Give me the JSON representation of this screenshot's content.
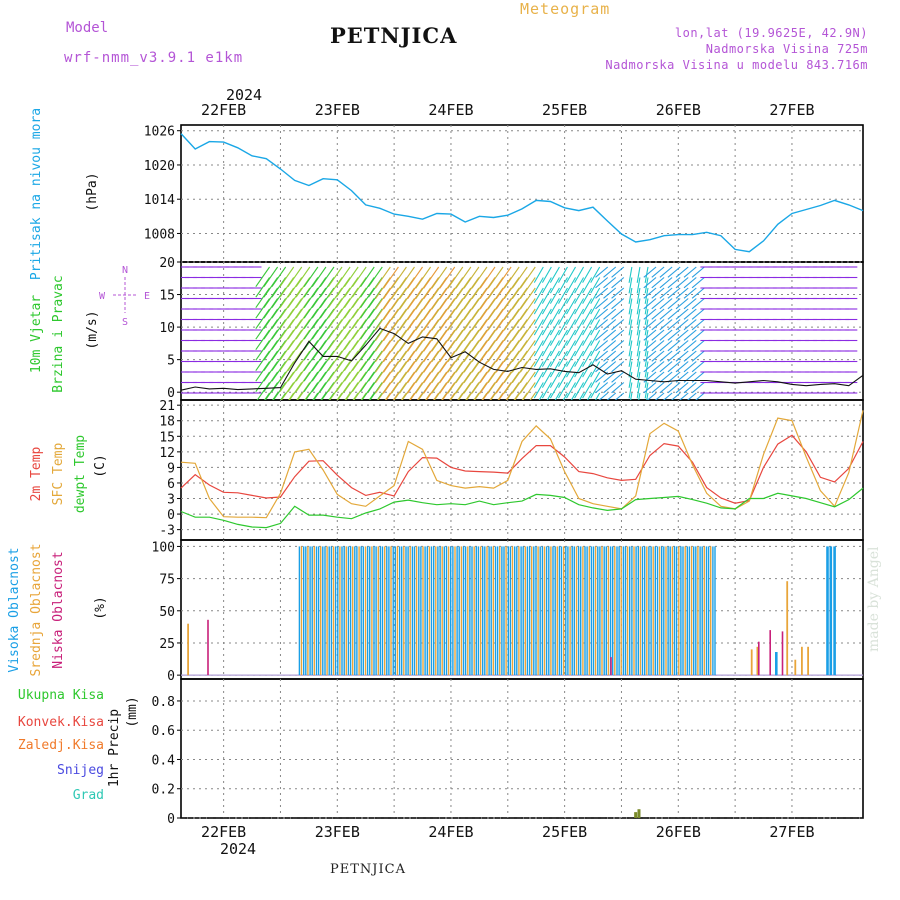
{
  "header": {
    "model_label": "Model",
    "model_name": "wrf-nmm_v3.9.1 e1km",
    "station": "PETNJICA",
    "meteogram": "Meteogram",
    "lonlat": "lon,lat (19.9625E, 42.9N)",
    "altitude": "Nadmorska Visina 725m",
    "model_altitude": "Nadmorska Visina u modelu 843.716m"
  },
  "footer": {
    "station": "PETNJICA",
    "watermark": "made by Angel"
  },
  "colors": {
    "pressure": "#1aa7e6",
    "temp": "#e8473f",
    "sfc": "#e3a83a",
    "dew": "#2ec82e",
    "high_cloud": "#1a9fe6",
    "mid_cloud": "#e8a53a",
    "low_cloud": "#c8207a",
    "purple_label": "#b455d6",
    "grid": "#888888"
  },
  "chart_data": [
    {
      "type": "line",
      "panel": "pressure",
      "ylabel": "Pritisak na nivou mora",
      "unit": "(hPa)",
      "yticks": [
        "1026",
        "1020",
        "1014",
        "1008"
      ],
      "ylim": [
        1003,
        1027
      ],
      "xlim": [
        0,
        144
      ],
      "x_top_year": "2024",
      "x_ticks": [
        "22FEB",
        "23FEB",
        "24FEB",
        "25FEB",
        "26FEB",
        "27FEB"
      ],
      "series": [
        {
          "x": [
            0,
            3,
            6,
            9,
            12,
            15,
            18,
            21,
            24,
            27,
            30,
            33,
            36,
            39,
            42,
            45,
            48,
            51,
            54,
            57,
            60,
            63,
            66,
            69,
            72,
            75,
            78,
            81,
            84,
            87,
            90,
            93,
            96,
            99,
            102,
            105,
            108,
            111,
            114,
            117,
            120,
            123,
            126,
            129,
            132,
            135,
            138,
            141,
            144
          ],
          "y": [
            1025.5,
            1022.8,
            1024.1,
            1024.0,
            1023.0,
            1021.6,
            1021.1,
            1019.3,
            1017.3,
            1016.4,
            1017.6,
            1017.4,
            1015.5,
            1013.0,
            1012.4,
            1011.4,
            1011.0,
            1010.5,
            1011.5,
            1011.4,
            1010.0,
            1011.0,
            1010.8,
            1011.2,
            1012.3,
            1013.8,
            1013.6,
            1012.5,
            1012.0,
            1012.6,
            1010.2,
            1007.9,
            1006.5,
            1006.9,
            1007.6,
            1007.8,
            1007.8,
            1008.2,
            1007.6,
            1005.2,
            1004.8,
            1006.7,
            1009.6,
            1011.5,
            1012.2,
            1012.9,
            1013.8,
            1013.0,
            1012.0
          ]
        }
      ]
    },
    {
      "type": "line",
      "panel": "wind",
      "ylabel": [
        "10m Vjetar",
        "Brzina i Pravac"
      ],
      "unit": "(m/s)",
      "compass": [
        "N",
        "W",
        "E",
        "S"
      ],
      "yticks": [
        "20",
        "15",
        "10",
        "5",
        "0"
      ],
      "ylim": [
        -1.2,
        20
      ],
      "series": [
        {
          "x": [
            0,
            3,
            6,
            9,
            12,
            15,
            18,
            21,
            24,
            27,
            30,
            33,
            36,
            39,
            42,
            45,
            48,
            51,
            54,
            57,
            60,
            63,
            66,
            69,
            72,
            75,
            78,
            81,
            84,
            87,
            90,
            93,
            96,
            99,
            102,
            105,
            108,
            111,
            114,
            117,
            120,
            123,
            126,
            129,
            132,
            135,
            138,
            141,
            144
          ],
          "y": [
            0.3,
            0.8,
            0.5,
            0.6,
            0.4,
            0.5,
            0.6,
            0.7,
            4.5,
            7.8,
            5.5,
            5.5,
            4.8,
            7.2,
            9.8,
            9.0,
            7.5,
            8.5,
            8.2,
            5.3,
            6.2,
            4.6,
            3.5,
            3.2,
            3.8,
            3.5,
            3.6,
            3.2,
            3.0,
            4.2,
            2.8,
            3.3,
            2.0,
            1.8,
            1.6,
            1.8,
            1.8,
            1.8,
            1.6,
            1.4,
            1.6,
            1.8,
            1.6,
            1.2,
            1.0,
            1.2,
            1.3,
            1.0,
            2.6
          ]
        }
      ]
    },
    {
      "type": "line",
      "panel": "temperature",
      "ylabel": [
        "2m Temp",
        "SFC Temp",
        "dewpt Temp"
      ],
      "unit": "(C)",
      "yticks": [
        "21",
        "18",
        "15",
        "12",
        "9",
        "6",
        "3",
        "0",
        "-3"
      ],
      "ylim": [
        -5,
        22
      ],
      "series": [
        {
          "name": "2m Temp",
          "x": [
            0,
            3,
            6,
            9,
            12,
            15,
            18,
            21,
            24,
            27,
            30,
            33,
            36,
            39,
            42,
            45,
            48,
            51,
            54,
            57,
            60,
            63,
            66,
            69,
            72,
            75,
            78,
            81,
            84,
            87,
            90,
            93,
            96,
            99,
            102,
            105,
            108,
            111,
            114,
            117,
            120,
            123,
            126,
            129,
            132,
            135,
            138,
            141,
            144
          ],
          "y": [
            5,
            7.6,
            5.6,
            4.2,
            4.1,
            3.6,
            3.1,
            3.3,
            7.2,
            10.2,
            10.3,
            7.5,
            5.1,
            3.6,
            4.2,
            3.5,
            8.2,
            10.9,
            10.8,
            9.0,
            8.3,
            8.2,
            8.1,
            7.9,
            10.7,
            13.2,
            13.2,
            11.0,
            8.2,
            7.8,
            7.0,
            6.5,
            6.7,
            11.3,
            13.6,
            13.1,
            10.0,
            5.1,
            3.1,
            2.1,
            2.6,
            9.0,
            13.5,
            15.2,
            12.0,
            7.1,
            6.2,
            8.8,
            14.0
          ]
        },
        {
          "name": "SFC Temp",
          "x": [
            0,
            3,
            6,
            9,
            12,
            15,
            18,
            21,
            24,
            27,
            30,
            33,
            36,
            39,
            42,
            45,
            48,
            51,
            54,
            57,
            60,
            63,
            66,
            69,
            72,
            75,
            78,
            81,
            84,
            87,
            90,
            93,
            96,
            99,
            102,
            105,
            108,
            111,
            114,
            117,
            120,
            123,
            126,
            129,
            132,
            135,
            138,
            141,
            144
          ],
          "y": [
            10,
            9.8,
            3.0,
            -0.5,
            -0.6,
            -0.6,
            -0.7,
            4.0,
            12.0,
            12.5,
            8.5,
            3.8,
            2.0,
            1.5,
            3.5,
            5.5,
            14.0,
            12.5,
            6.5,
            5.5,
            5.0,
            5.3,
            5.0,
            6.5,
            14.0,
            17.0,
            14.5,
            8.2,
            3.0,
            2.0,
            1.5,
            1.0,
            3.5,
            15.5,
            17.5,
            16.0,
            9.5,
            4.0,
            1.5,
            1.0,
            2.5,
            11.5,
            18.5,
            18.0,
            11.0,
            4.5,
            1.5,
            8.0,
            20.0
          ]
        },
        {
          "name": "dewpt Temp",
          "x": [
            0,
            3,
            6,
            9,
            12,
            15,
            18,
            21,
            24,
            27,
            30,
            33,
            36,
            39,
            42,
            45,
            48,
            51,
            54,
            57,
            60,
            63,
            66,
            69,
            72,
            75,
            78,
            81,
            84,
            87,
            90,
            93,
            96,
            99,
            102,
            105,
            108,
            111,
            114,
            117,
            120,
            123,
            126,
            129,
            132,
            135,
            138,
            141,
            144
          ],
          "y": [
            0.5,
            -0.6,
            -0.6,
            -1.2,
            -2.0,
            -2.5,
            -2.6,
            -1.8,
            1.5,
            -0.2,
            -0.2,
            -0.6,
            -0.9,
            0.2,
            1.0,
            2.3,
            2.7,
            2.2,
            1.8,
            2.0,
            1.8,
            2.5,
            1.8,
            2.2,
            2.5,
            3.8,
            3.6,
            3.2,
            1.8,
            1.2,
            0.7,
            1.0,
            2.8,
            3.0,
            3.2,
            3.4,
            2.8,
            2.1,
            1.2,
            1.0,
            3.0,
            3.0,
            4.0,
            3.5,
            3.0,
            2.2,
            1.4,
            2.8,
            5.0
          ]
        }
      ]
    },
    {
      "type": "bar",
      "panel": "cloud",
      "ylabel": [
        "Visoka Oblacnost",
        "Srednja Oblacnost",
        "Niska Oblacnost"
      ],
      "unit": "(%)",
      "yticks": [
        "100",
        "75",
        "50",
        "25",
        "0"
      ],
      "ylim": [
        -3,
        105
      ],
      "dense_high_range": [
        25,
        113
      ],
      "high_extra": [
        {
          "x": 125.7,
          "v": 18
        },
        {
          "x": 136.5,
          "v": 100
        },
        {
          "x": 137.2,
          "v": 100
        },
        {
          "x": 138.0,
          "v": 100
        }
      ],
      "mid": [
        {
          "x": 1.5,
          "v": 40
        },
        {
          "x": 120.5,
          "v": 20
        },
        {
          "x": 121.7,
          "v": 22
        },
        {
          "x": 128.0,
          "v": 73
        },
        {
          "x": 129.7,
          "v": 12
        },
        {
          "x": 131.1,
          "v": 22
        },
        {
          "x": 132.4,
          "v": 22
        }
      ],
      "low": [
        {
          "x": 5.7,
          "v": 43
        },
        {
          "x": 122.0,
          "v": 26
        },
        {
          "x": 127.0,
          "v": 34
        },
        {
          "x": 124.4,
          "v": 35
        },
        {
          "x": 90.8,
          "v": 14
        }
      ]
    },
    {
      "type": "bar",
      "panel": "precip",
      "ylabel": "1hr Precip",
      "unit": "(mm)",
      "legend": [
        "Ukupna  Kisa",
        "Konvek.Kisa",
        "Zaledj.Kisa",
        "Snijeg",
        "Grad"
      ],
      "yticks": [
        "0.8",
        "0.6",
        "0.4",
        "0.2",
        "0"
      ],
      "ylim": [
        0,
        0.95
      ],
      "total": [
        {
          "x": 96.0,
          "v": 0.04
        },
        {
          "x": 96.7,
          "v": 0.06
        }
      ],
      "x_bottom_year": "2024"
    }
  ]
}
